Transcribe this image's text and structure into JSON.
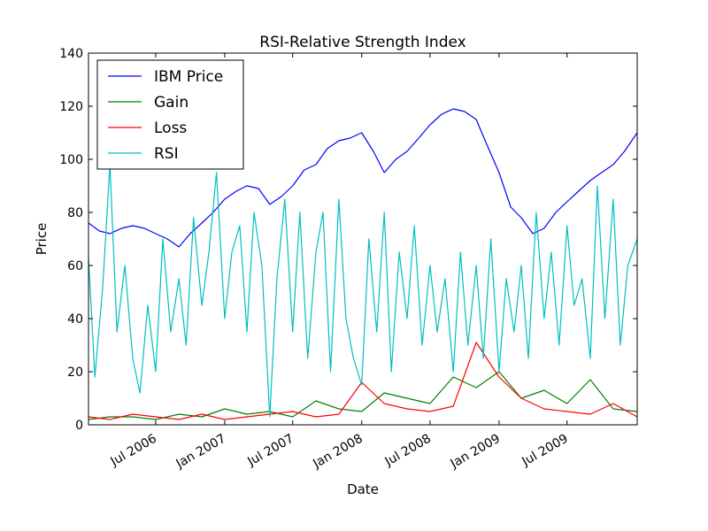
{
  "chart_data": {
    "type": "line",
    "title": "RSI-Relative Strength Index",
    "xlabel": "Date",
    "ylabel": "Price",
    "xlim": [
      "2006-01-03",
      "2010-01-04"
    ],
    "ylim": [
      0,
      140
    ],
    "y_ticks": [
      0,
      20,
      40,
      60,
      80,
      100,
      120,
      140
    ],
    "x_ticks": [
      {
        "date": "2006-07-01",
        "label": "Jul 2006"
      },
      {
        "date": "2007-01-01",
        "label": "Jan 2007"
      },
      {
        "date": "2007-07-01",
        "label": "Jul 2007"
      },
      {
        "date": "2008-01-01",
        "label": "Jan 2008"
      },
      {
        "date": "2008-07-01",
        "label": "Jul 2008"
      },
      {
        "date": "2009-01-01",
        "label": "Jan 2009"
      },
      {
        "date": "2009-07-01",
        "label": "Jul 2009"
      }
    ],
    "grid": false,
    "legend_position": "top-left",
    "series": [
      {
        "name": "IBM Price",
        "color": "#0000ff",
        "x": [
          "2006-01-03",
          "2006-02-01",
          "2006-03-01",
          "2006-04-01",
          "2006-05-01",
          "2006-06-01",
          "2006-07-01",
          "2006-08-01",
          "2006-09-01",
          "2006-10-01",
          "2006-11-01",
          "2006-12-01",
          "2007-01-01",
          "2007-02-01",
          "2007-03-01",
          "2007-04-01",
          "2007-05-01",
          "2007-06-01",
          "2007-07-01",
          "2007-08-01",
          "2007-09-01",
          "2007-10-01",
          "2007-11-01",
          "2007-12-01",
          "2008-01-01",
          "2008-02-01",
          "2008-03-01",
          "2008-04-01",
          "2008-05-01",
          "2008-06-01",
          "2008-07-01",
          "2008-08-01",
          "2008-09-01",
          "2008-10-01",
          "2008-11-01",
          "2008-12-01",
          "2009-01-01",
          "2009-02-01",
          "2009-03-01",
          "2009-04-01",
          "2009-05-01",
          "2009-06-01",
          "2009-07-01",
          "2009-08-01",
          "2009-09-01",
          "2009-10-01",
          "2009-11-01",
          "2009-12-01",
          "2010-01-04"
        ],
        "values": [
          76,
          73,
          72,
          74,
          75,
          74,
          72,
          70,
          67,
          72,
          76,
          80,
          85,
          88,
          90,
          89,
          83,
          86,
          90,
          96,
          98,
          104,
          107,
          108,
          110,
          103,
          95,
          100,
          103,
          108,
          113,
          117,
          119,
          118,
          115,
          105,
          95,
          82,
          78,
          72,
          74,
          80,
          84,
          88,
          92,
          95,
          98,
          103,
          110
        ]
      },
      {
        "name": "Gain",
        "color": "#008000",
        "x": [
          "2006-01-03",
          "2006-03-01",
          "2006-05-01",
          "2006-07-01",
          "2006-09-01",
          "2006-11-01",
          "2007-01-01",
          "2007-03-01",
          "2007-05-01",
          "2007-07-01",
          "2007-09-01",
          "2007-11-01",
          "2008-01-01",
          "2008-03-01",
          "2008-05-01",
          "2008-07-01",
          "2008-09-01",
          "2008-11-01",
          "2009-01-01",
          "2009-03-01",
          "2009-05-01",
          "2009-07-01",
          "2009-09-01",
          "2009-11-01",
          "2010-01-04"
        ],
        "values": [
          2,
          3,
          3,
          2,
          4,
          3,
          6,
          4,
          5,
          3,
          9,
          6,
          5,
          12,
          10,
          8,
          18,
          14,
          20,
          10,
          13,
          8,
          17,
          6,
          5
        ]
      },
      {
        "name": "Loss",
        "color": "#ff0000",
        "x": [
          "2006-01-03",
          "2006-03-01",
          "2006-05-01",
          "2006-07-01",
          "2006-09-01",
          "2006-11-01",
          "2007-01-01",
          "2007-03-01",
          "2007-05-01",
          "2007-07-01",
          "2007-09-01",
          "2007-11-01",
          "2008-01-01",
          "2008-03-01",
          "2008-05-01",
          "2008-07-01",
          "2008-09-01",
          "2008-11-01",
          "2009-01-01",
          "2009-03-01",
          "2009-05-01",
          "2009-07-01",
          "2009-09-01",
          "2009-11-01",
          "2010-01-04"
        ],
        "values": [
          3,
          2,
          4,
          3,
          2,
          4,
          2,
          3,
          4,
          5,
          3,
          4,
          16,
          8,
          6,
          5,
          7,
          31,
          18,
          10,
          6,
          5,
          4,
          8,
          3
        ]
      },
      {
        "name": "RSI",
        "color": "#00bfbf",
        "x": [
          "2006-01-03",
          "2006-01-20",
          "2006-02-10",
          "2006-03-01",
          "2006-03-20",
          "2006-04-10",
          "2006-05-01",
          "2006-05-20",
          "2006-06-10",
          "2006-07-01",
          "2006-07-20",
          "2006-08-10",
          "2006-09-01",
          "2006-09-20",
          "2006-10-10",
          "2006-11-01",
          "2006-11-20",
          "2006-12-10",
          "2007-01-01",
          "2007-01-20",
          "2007-02-10",
          "2007-03-01",
          "2007-03-20",
          "2007-04-10",
          "2007-05-01",
          "2007-05-20",
          "2007-06-10",
          "2007-07-01",
          "2007-07-20",
          "2007-08-10",
          "2007-09-01",
          "2007-09-20",
          "2007-10-10",
          "2007-11-01",
          "2007-11-20",
          "2007-12-10",
          "2008-01-01",
          "2008-01-20",
          "2008-02-10",
          "2008-03-01",
          "2008-03-20",
          "2008-04-10",
          "2008-05-01",
          "2008-05-20",
          "2008-06-10",
          "2008-07-01",
          "2008-07-20",
          "2008-08-10",
          "2008-09-01",
          "2008-09-20",
          "2008-10-10",
          "2008-11-01",
          "2008-11-20",
          "2008-12-10",
          "2009-01-01",
          "2009-01-20",
          "2009-02-10",
          "2009-03-01",
          "2009-03-20",
          "2009-04-10",
          "2009-05-01",
          "2009-05-20",
          "2009-06-10",
          "2009-07-01",
          "2009-07-20",
          "2009-08-10",
          "2009-09-01",
          "2009-09-20",
          "2009-10-10",
          "2009-11-01",
          "2009-11-20",
          "2009-12-10",
          "2010-01-04"
        ],
        "values": [
          63,
          18,
          52,
          98,
          35,
          60,
          25,
          12,
          45,
          20,
          70,
          35,
          55,
          30,
          78,
          45,
          65,
          95,
          40,
          65,
          75,
          35,
          80,
          60,
          3,
          55,
          85,
          35,
          80,
          25,
          65,
          80,
          20,
          85,
          40,
          25,
          15,
          70,
          35,
          80,
          20,
          65,
          40,
          75,
          30,
          60,
          35,
          55,
          20,
          65,
          30,
          60,
          25,
          70,
          20,
          55,
          35,
          60,
          25,
          80,
          40,
          65,
          30,
          75,
          45,
          55,
          25,
          90,
          40,
          85,
          30,
          60,
          70
        ]
      }
    ]
  }
}
